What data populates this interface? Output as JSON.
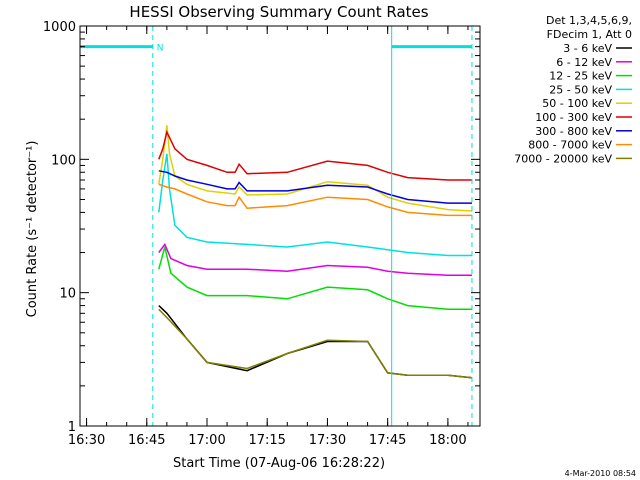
{
  "chart_data": {
    "type": "line",
    "title": "HESSI Observing Summary Count Rates",
    "xlabel": "Start Time (07-Aug-06 16:28:22)",
    "ylabel": "Count Rate (s⁻¹ detector⁻¹)",
    "yscale": "log",
    "ylim": [
      1,
      1000
    ],
    "xlim": [
      "16:28:22",
      "18:08:00"
    ],
    "x_ticks": [
      "16:30",
      "16:45",
      "17:00",
      "17:15",
      "17:30",
      "17:45",
      "18:00"
    ],
    "y_ticks": [
      "1",
      "10",
      "100",
      "1000"
    ],
    "grid": false,
    "legend": {
      "position": "top-right",
      "header": [
        "Det 1,3,4,5,6,9,",
        "FDecim 1, Att 0"
      ]
    },
    "series": [
      {
        "name": "3 - 6 keV",
        "color": "#000000",
        "x": [
          "16:48:00",
          "16:50:00",
          "16:55:00",
          "17:00:00",
          "17:10:00",
          "17:20:00",
          "17:30:00",
          "17:40:00",
          "17:45:00",
          "17:50:00",
          "18:00:00",
          "18:06:00"
        ],
        "values": [
          8.0,
          7.0,
          4.5,
          3.0,
          2.6,
          3.5,
          4.3,
          4.3,
          2.5,
          2.4,
          2.4,
          2.3
        ]
      },
      {
        "name": "6 - 12 keV",
        "color": "#e000e0",
        "x": [
          "16:48:00",
          "16:49:30",
          "16:51:00",
          "16:55:00",
          "17:00:00",
          "17:10:00",
          "17:20:00",
          "17:30:00",
          "17:40:00",
          "17:45:00",
          "17:50:00",
          "18:00:00",
          "18:06:00"
        ],
        "values": [
          20,
          23,
          18,
          16,
          15,
          15,
          14.5,
          16,
          15.5,
          14.5,
          14,
          13.5,
          13.5
        ]
      },
      {
        "name": "12 - 25 keV",
        "color": "#00e000",
        "x": [
          "16:48:00",
          "16:49:30",
          "16:51:00",
          "16:55:00",
          "17:00:00",
          "17:10:00",
          "17:20:00",
          "17:30:00",
          "17:40:00",
          "17:45:00",
          "17:50:00",
          "18:00:00",
          "18:06:00"
        ],
        "values": [
          15,
          22,
          14,
          11,
          9.5,
          9.5,
          9,
          11,
          10.5,
          9,
          8,
          7.5,
          7.5
        ]
      },
      {
        "name": "25 - 50 keV",
        "color": "#00e0e0",
        "x": [
          "16:48:00",
          "16:49:00",
          "16:50:00",
          "16:50:40",
          "16:52:00",
          "16:55:00",
          "17:00:00",
          "17:10:00",
          "17:20:00",
          "17:30:00",
          "17:40:00",
          "17:45:00",
          "17:50:00",
          "18:00:00",
          "18:06:00"
        ],
        "values": [
          40,
          70,
          110,
          60,
          32,
          26,
          24,
          23,
          22,
          24,
          22,
          21,
          20,
          19,
          19
        ]
      },
      {
        "name": "50 - 100 keV",
        "color": "#e0d000",
        "x": [
          "16:48:00",
          "16:49:00",
          "16:50:00",
          "16:50:40",
          "16:52:00",
          "16:55:00",
          "17:00:00",
          "17:07:00",
          "17:08:00",
          "17:10:00",
          "17:20:00",
          "17:30:00",
          "17:40:00",
          "17:45:00",
          "17:50:00",
          "18:00:00",
          "18:06:00"
        ],
        "values": [
          65,
          100,
          180,
          110,
          75,
          65,
          58,
          55,
          62,
          54,
          55,
          68,
          64,
          52,
          47,
          42,
          41
        ]
      },
      {
        "name": "100 - 300 keV",
        "color": "#e00000",
        "x": [
          "16:48:00",
          "16:49:00",
          "16:50:00",
          "16:52:00",
          "16:55:00",
          "17:00:00",
          "17:05:00",
          "17:07:00",
          "17:08:00",
          "17:10:00",
          "17:20:00",
          "17:30:00",
          "17:40:00",
          "17:45:00",
          "17:50:00",
          "18:00:00",
          "18:06:00"
        ],
        "values": [
          100,
          120,
          160,
          120,
          100,
          90,
          80,
          80,
          92,
          78,
          80,
          97,
          90,
          80,
          73,
          70,
          70
        ]
      },
      {
        "name": "300 - 800 keV",
        "color": "#0000e0",
        "x": [
          "16:48:00",
          "16:50:00",
          "16:52:00",
          "16:55:00",
          "17:00:00",
          "17:05:00",
          "17:07:00",
          "17:08:00",
          "17:10:00",
          "17:20:00",
          "17:30:00",
          "17:40:00",
          "17:45:00",
          "17:50:00",
          "18:00:00",
          "18:06:00"
        ],
        "values": [
          82,
          80,
          75,
          70,
          65,
          60,
          60,
          67,
          58,
          58,
          64,
          62,
          55,
          50,
          47,
          47
        ]
      },
      {
        "name": "800 - 7000 keV",
        "color": "#ff8c00",
        "x": [
          "16:48:00",
          "16:50:00",
          "16:52:00",
          "16:55:00",
          "17:00:00",
          "17:05:00",
          "17:07:00",
          "17:08:00",
          "17:10:00",
          "17:20:00",
          "17:30:00",
          "17:40:00",
          "17:45:00",
          "17:50:00",
          "18:00:00",
          "18:06:00"
        ],
        "values": [
          65,
          62,
          60,
          55,
          48,
          45,
          45,
          52,
          43,
          45,
          52,
          50,
          44,
          40,
          38,
          38
        ]
      },
      {
        "name": "7000 - 20000 keV",
        "color": "#7f7f00",
        "x": [
          "16:48:00",
          "16:50:00",
          "16:55:00",
          "17:00:00",
          "17:10:00",
          "17:20:00",
          "17:30:00",
          "17:40:00",
          "17:45:00",
          "17:50:00",
          "18:00:00",
          "18:06:00"
        ],
        "values": [
          7.5,
          6.5,
          4.5,
          3.0,
          2.7,
          3.5,
          4.4,
          4.3,
          2.5,
          2.4,
          2.4,
          2.3
        ]
      }
    ],
    "annotations": [
      {
        "text": "N",
        "x": "16:46:30",
        "color": "#00e0e0"
      }
    ],
    "attenuator_segments": [
      {
        "x_start": "16:28:22",
        "x_end": "16:46:30",
        "y": 700,
        "color": "#00e0e0"
      },
      {
        "x_start": "17:46:00",
        "x_end": "18:06:00",
        "y": 700,
        "color": "#00e0e0"
      }
    ],
    "vertical_lines": [
      {
        "x": "16:28:22",
        "style": "solid",
        "color": "#00e0e0"
      },
      {
        "x": "16:46:30",
        "style": "dashed",
        "color": "#00e0e0"
      },
      {
        "x": "17:46:00",
        "style": "solid",
        "color": "#00e0e0"
      },
      {
        "x": "18:06:00",
        "style": "dashed",
        "color": "#00e0e0"
      }
    ]
  },
  "footer": {
    "timestamp": "4-Mar-2010 08:54"
  }
}
